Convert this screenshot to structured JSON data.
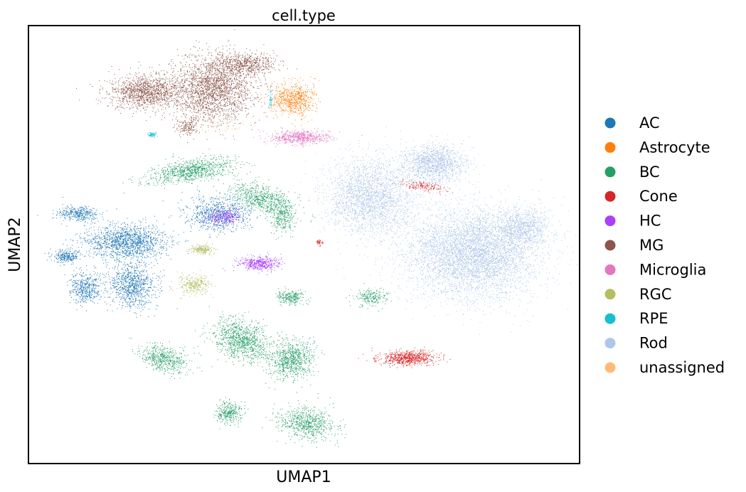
{
  "chart_data": {
    "type": "scatter",
    "title": "cell.type",
    "xlabel": "UMAP1",
    "ylabel": "UMAP2",
    "grid": false,
    "ticks": false,
    "legend_position": "right",
    "series": [
      {
        "name": "AC",
        "color": "#1f77b4"
      },
      {
        "name": "Astrocyte",
        "color": "#ff7f0e"
      },
      {
        "name": "BC",
        "color": "#279e68"
      },
      {
        "name": "Cone",
        "color": "#d62728"
      },
      {
        "name": "HC",
        "color": "#aa40fc"
      },
      {
        "name": "MG",
        "color": "#8c564b"
      },
      {
        "name": "Microglia",
        "color": "#e377c2"
      },
      {
        "name": "RGC",
        "color": "#b5bd61"
      },
      {
        "name": "RPE",
        "color": "#17becf"
      },
      {
        "name": "Rod",
        "color": "#aec7e8"
      },
      {
        "name": "unassigned",
        "color": "#ffbb78"
      }
    ]
  }
}
